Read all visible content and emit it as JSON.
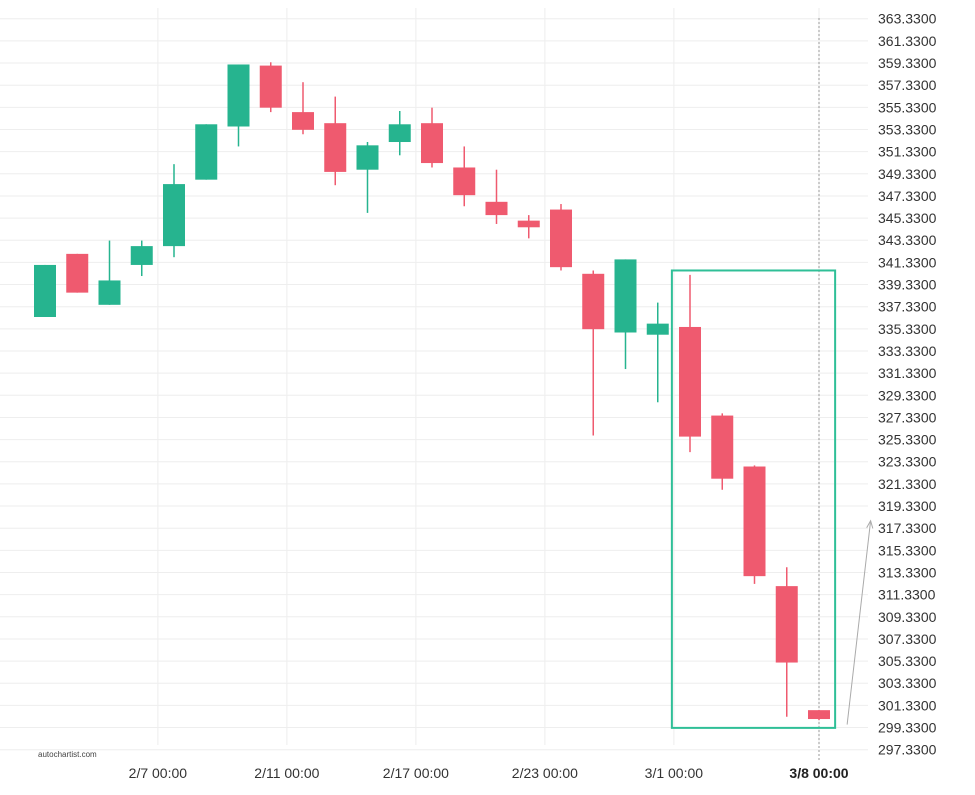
{
  "watermark": "autochartist.com",
  "colors": {
    "up": "#26b48f",
    "down": "#ef5a6f",
    "box": "#2fbf97",
    "grid": "#eeeeee",
    "axis_text": "#333333",
    "cursor": "#999999"
  },
  "chart_data": {
    "type": "candlestick",
    "y_ticks": [
      "363.3300",
      "361.3300",
      "359.3300",
      "357.3300",
      "355.3300",
      "353.3300",
      "351.3300",
      "349.3300",
      "347.3300",
      "345.3300",
      "343.3300",
      "341.3300",
      "339.3300",
      "337.3300",
      "335.3300",
      "333.3300",
      "331.3300",
      "329.3300",
      "327.3300",
      "325.3300",
      "323.3300",
      "321.3300",
      "319.3300",
      "317.3300",
      "315.3300",
      "313.3300",
      "311.3300",
      "309.3300",
      "307.3300",
      "305.3300",
      "303.3300",
      "301.3300",
      "299.3300",
      "297.3300"
    ],
    "ylim": [
      296.4,
      364.3
    ],
    "x_labels": [
      {
        "text": "2/7 00:00",
        "index": 3.5
      },
      {
        "text": "2/11 00:00",
        "index": 7.5
      },
      {
        "text": "2/17 00:00",
        "index": 11.5
      },
      {
        "text": "2/23 00:00",
        "index": 15.5
      },
      {
        "text": "3/1 00:00",
        "index": 19.5
      },
      {
        "text": "3/8 00:00",
        "index": 24.0,
        "bold": true
      }
    ],
    "candles": [
      {
        "open": 336.4,
        "high": 341.1,
        "low": 336.4,
        "close": 341.1
      },
      {
        "open": 342.1,
        "high": 342.1,
        "low": 338.6,
        "close": 338.6
      },
      {
        "open": 337.5,
        "high": 343.3,
        "low": 337.5,
        "close": 339.7
      },
      {
        "open": 341.1,
        "high": 343.3,
        "low": 340.1,
        "close": 342.8
      },
      {
        "open": 342.8,
        "high": 350.2,
        "low": 341.8,
        "close": 348.4
      },
      {
        "open": 348.8,
        "high": 353.8,
        "low": 348.8,
        "close": 353.8
      },
      {
        "open": 353.6,
        "high": 359.2,
        "low": 351.8,
        "close": 359.2
      },
      {
        "open": 359.1,
        "high": 359.4,
        "low": 354.9,
        "close": 355.3
      },
      {
        "open": 354.9,
        "high": 357.6,
        "low": 352.9,
        "close": 353.3
      },
      {
        "open": 353.9,
        "high": 356.3,
        "low": 348.3,
        "close": 349.5
      },
      {
        "open": 349.7,
        "high": 352.2,
        "low": 345.8,
        "close": 351.9
      },
      {
        "open": 352.2,
        "high": 355.0,
        "low": 351.0,
        "close": 353.8
      },
      {
        "open": 353.9,
        "high": 355.3,
        "low": 349.9,
        "close": 350.3
      },
      {
        "open": 349.9,
        "high": 351.8,
        "low": 346.4,
        "close": 347.4
      },
      {
        "open": 346.8,
        "high": 349.7,
        "low": 344.8,
        "close": 345.6
      },
      {
        "open": 345.1,
        "high": 345.6,
        "low": 343.5,
        "close": 344.5
      },
      {
        "open": 346.1,
        "high": 346.6,
        "low": 340.6,
        "close": 340.9
      },
      {
        "open": 340.3,
        "high": 340.6,
        "low": 325.7,
        "close": 335.3
      },
      {
        "open": 335.0,
        "high": 341.6,
        "low": 331.7,
        "close": 341.6
      },
      {
        "open": 334.8,
        "high": 337.7,
        "low": 328.7,
        "close": 335.8
      },
      {
        "open": 335.5,
        "high": 340.2,
        "low": 324.2,
        "close": 325.6
      },
      {
        "open": 327.5,
        "high": 327.7,
        "low": 320.8,
        "close": 321.8
      },
      {
        "open": 322.9,
        "high": 323.0,
        "low": 312.3,
        "close": 313.0
      },
      {
        "open": 312.1,
        "high": 313.8,
        "low": 300.3,
        "close": 305.2
      },
      {
        "open": 300.9,
        "high": 300.9,
        "low": 300.0,
        "close": 300.1
      }
    ],
    "highlight_box": {
      "from_index": 19.5,
      "to_index": 24.5,
      "top": 340.6,
      "bottom": 299.3
    },
    "projection_arrow": {
      "from_index": 24.5,
      "from_value": 299.6,
      "to_index": 25.6,
      "to_value": 318.0
    },
    "cursor_index": 24.0,
    "grid": true
  }
}
